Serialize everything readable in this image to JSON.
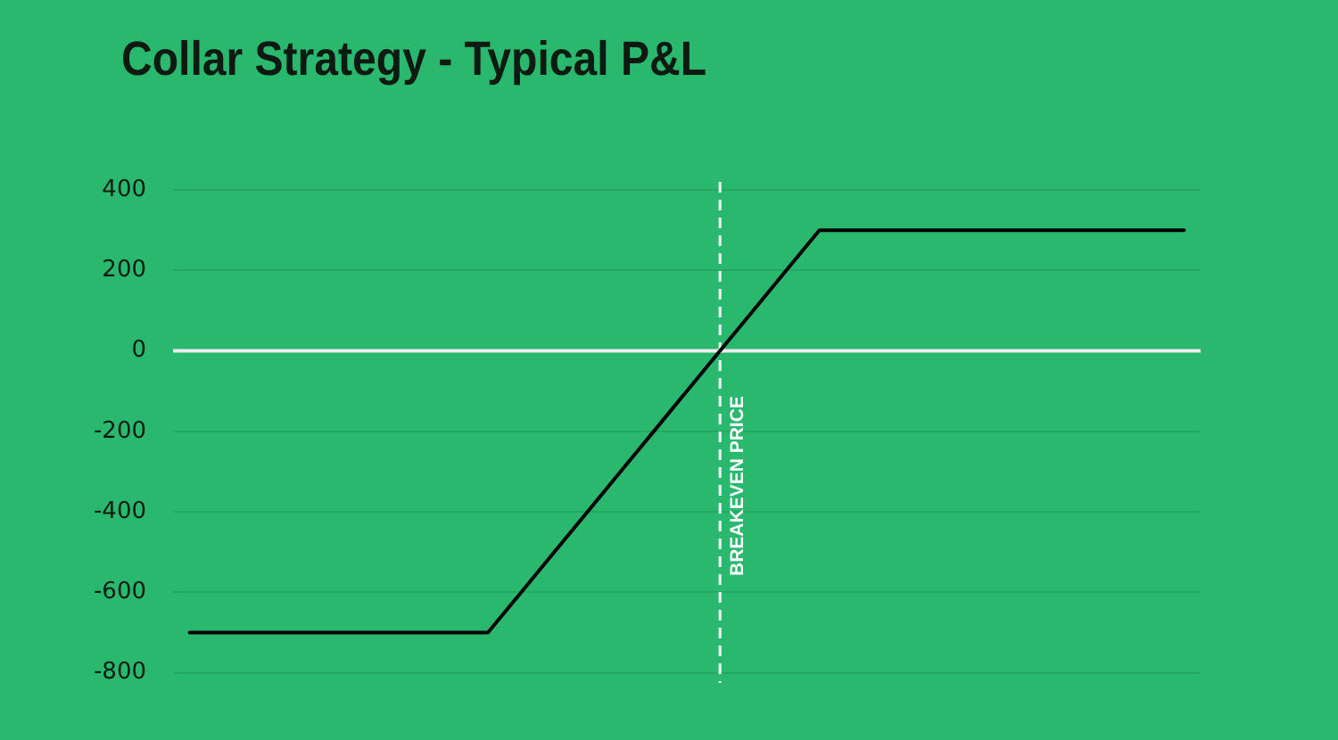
{
  "chart_data": {
    "type": "line",
    "title": "Collar Strategy - Typical P&L",
    "categories": [
      null,
      null,
      null,
      null,
      null,
      null,
      null,
      null,
      null,
      null,
      null,
      null,
      null,
      null,
      null,
      null,
      null,
      null,
      null,
      null,
      null,
      null,
      null,
      null,
      null,
      null,
      null,
      null,
      null,
      null,
      null
    ],
    "values": [
      -700,
      -700,
      -700,
      -700,
      -700,
      -700,
      -700,
      -700,
      -700,
      -700,
      -600,
      -500,
      -400,
      -300,
      -200,
      -100,
      0,
      100,
      200,
      300,
      300,
      300,
      300,
      300,
      300,
      300,
      300,
      300,
      300,
      300,
      300
    ],
    "color": "#000000",
    "ylim": [
      -825,
      420
    ],
    "yticks": [
      -800,
      -600,
      -400,
      -200,
      0,
      200,
      400
    ],
    "grid": "y",
    "tick_labels": "y",
    "marker": "none",
    "line_style": "solid",
    "ref_lines": [
      {
        "axis": "y",
        "value": 0,
        "color": "#ececec",
        "line_style": "solid"
      }
    ],
    "annotations": [
      {
        "text": "BREAKEVEN PRICE",
        "y": 0
      }
    ]
  }
}
